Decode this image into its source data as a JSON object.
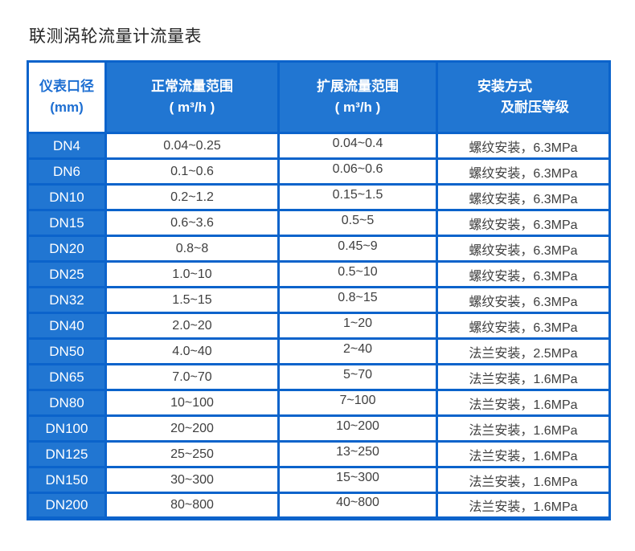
{
  "page": {
    "title": "联测涡轮流量计流量表"
  },
  "colors": {
    "cell_fill_blue": "#2176d2",
    "border_blue": "#0b63cb",
    "header_text_blue": "#1e6fd2",
    "body_text": "#3f3f3f",
    "title_text": "#262626",
    "background": "#ffffff"
  },
  "table": {
    "columns": [
      {
        "name": "diameter",
        "line1": "仪表口径",
        "line2": "(mm)"
      },
      {
        "name": "normal-range",
        "line1": "正常流量范围",
        "line2": "( m³/h )"
      },
      {
        "name": "extended-range",
        "line1": "扩展流量范围",
        "line2": "( m³/h )"
      },
      {
        "name": "installation",
        "line1": "安装方式",
        "line2": "及耐压等级"
      }
    ],
    "rows": [
      [
        "DN4",
        "0.04~0.25",
        "0.04~0.4",
        "螺纹安装，6.3MPa"
      ],
      [
        "DN6",
        "0.1~0.6",
        "0.06~0.6",
        "螺纹安装，6.3MPa"
      ],
      [
        "DN10",
        "0.2~1.2",
        "0.15~1.5",
        "螺纹安装，6.3MPa"
      ],
      [
        "DN15",
        "0.6~3.6",
        "0.5~5",
        "螺纹安装，6.3MPa"
      ],
      [
        "DN20",
        "0.8~8",
        "0.45~9",
        "螺纹安装，6.3MPa"
      ],
      [
        "DN25",
        "1.0~10",
        "0.5~10",
        "螺纹安装，6.3MPa"
      ],
      [
        "DN32",
        "1.5~15",
        "0.8~15",
        "螺纹安装，6.3MPa"
      ],
      [
        "DN40",
        "2.0~20",
        "1~20",
        "螺纹安装，6.3MPa"
      ],
      [
        "DN50",
        "4.0~40",
        "2~40",
        "法兰安装，2.5MPa"
      ],
      [
        "DN65",
        "7.0~70",
        "5~70",
        "法兰安装，1.6MPa"
      ],
      [
        "DN80",
        "10~100",
        "7~100",
        "法兰安装，1.6MPa"
      ],
      [
        "DN100",
        "20~200",
        "10~200",
        "法兰安装，1.6MPa"
      ],
      [
        "DN125",
        "25~250",
        "13~250",
        "法兰安装，1.6MPa"
      ],
      [
        "DN150",
        "30~300",
        "15~300",
        "法兰安装，1.6MPa"
      ],
      [
        "DN200",
        "80~800",
        "40~800",
        "法兰安装，1.6MPa"
      ]
    ]
  }
}
